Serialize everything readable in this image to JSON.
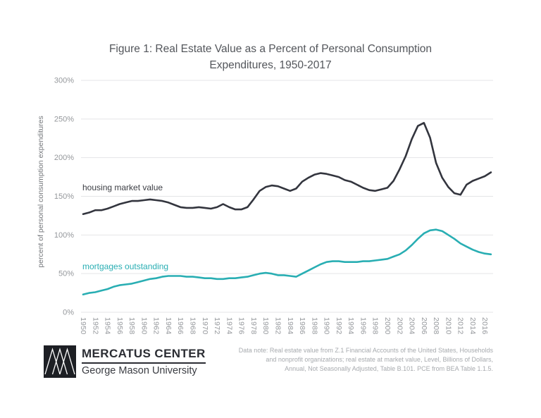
{
  "title": "Figure 1: Real Estate Value as a Percent of Personal Consumption Expenditures, 1950-2017",
  "chart_data": {
    "type": "line",
    "title": "Figure 1: Real Estate Value as a Percent of Personal Consumption Expenditures, 1950-2017",
    "ylabel": "percent of personal consumption expenditures",
    "xlabel": "",
    "ylim": [
      0,
      300
    ],
    "grid": "horizontal",
    "legend_position": "inline-labels",
    "y_ticks": [
      "0%",
      "50%",
      "100%",
      "150%",
      "200%",
      "250%",
      "300%"
    ],
    "x_ticks": [
      1950,
      1952,
      1954,
      1956,
      1958,
      1960,
      1962,
      1964,
      1966,
      1968,
      1970,
      1972,
      1974,
      1976,
      1978,
      1980,
      1982,
      1984,
      1986,
      1988,
      1990,
      1992,
      1994,
      1996,
      1998,
      2000,
      2002,
      2004,
      2006,
      2008,
      2010,
      2012,
      2014,
      2016
    ],
    "x": [
      1950,
      1951,
      1952,
      1953,
      1954,
      1955,
      1956,
      1957,
      1958,
      1959,
      1960,
      1961,
      1962,
      1963,
      1964,
      1965,
      1966,
      1967,
      1968,
      1969,
      1970,
      1971,
      1972,
      1973,
      1974,
      1975,
      1976,
      1977,
      1978,
      1979,
      1980,
      1981,
      1982,
      1983,
      1984,
      1985,
      1986,
      1987,
      1988,
      1989,
      1990,
      1991,
      1992,
      1993,
      1994,
      1995,
      1996,
      1997,
      1998,
      1999,
      2000,
      2001,
      2002,
      2003,
      2004,
      2005,
      2006,
      2007,
      2008,
      2009,
      2010,
      2011,
      2012,
      2013,
      2014,
      2015,
      2016,
      2017
    ],
    "series": [
      {
        "name": "housing market value",
        "color": "#33353e",
        "values": [
          127,
          129,
          132,
          132,
          134,
          137,
          140,
          142,
          144,
          144,
          145,
          146,
          145,
          144,
          142,
          139,
          136,
          135,
          135,
          136,
          135,
          134,
          136,
          140,
          136,
          133,
          133,
          136,
          146,
          157,
          162,
          164,
          163,
          160,
          157,
          160,
          169,
          174,
          178,
          180,
          179,
          177,
          175,
          171,
          169,
          165,
          161,
          158,
          157,
          159,
          161,
          170,
          185,
          202,
          224,
          241,
          245,
          226,
          193,
          174,
          162,
          154,
          152,
          165,
          170,
          173,
          176,
          181
        ]
      },
      {
        "name": "mortgages outstanding",
        "color": "#29aeb3",
        "values": [
          23,
          25,
          26,
          28,
          30,
          33,
          35,
          36,
          37,
          39,
          41,
          43,
          44,
          46,
          47,
          47,
          47,
          46,
          46,
          45,
          44,
          44,
          43,
          43,
          44,
          44,
          45,
          46,
          48,
          50,
          51,
          50,
          48,
          48,
          47,
          46,
          50,
          54,
          58,
          62,
          65,
          66,
          66,
          65,
          65,
          65,
          66,
          66,
          67,
          68,
          69,
          72,
          75,
          80,
          87,
          95,
          102,
          106,
          107,
          105,
          100,
          95,
          89,
          85,
          81,
          78,
          76,
          75
        ]
      }
    ]
  },
  "footer": {
    "logo": {
      "org": "MERCATUS CENTER",
      "sub": "George Mason University",
      "icon": "mercatus-triangles-icon"
    },
    "data_note_lines": [
      "Data note: Real estate value from  Z.1 Financial Accounts of the United States, Households",
      "and nonprofit organizations; real estate at market value, Level, Billions of Dollars,",
      "Annual, Not Seasonally Adjusted, Table B.101. PCE from BEA Table 1.1.5."
    ]
  }
}
